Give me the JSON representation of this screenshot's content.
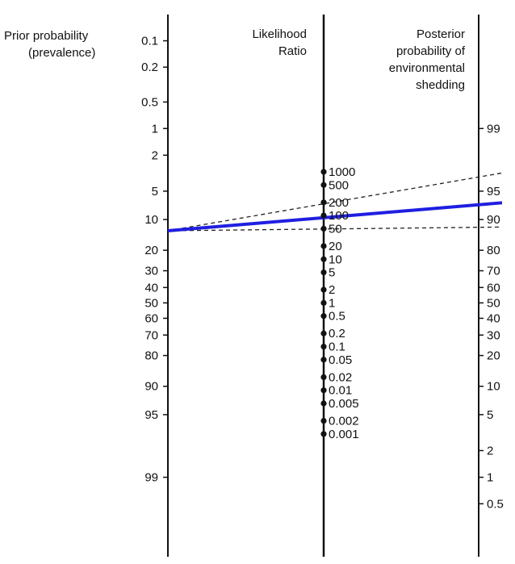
{
  "labels": {
    "prior_title_1": "Prior probability",
    "prior_title_2": "(prevalence)",
    "lr_title_1": "Likelihood",
    "lr_title_2": "Ratio",
    "post_title_1": "Posterior",
    "post_title_2": "probability of",
    "post_title_3": "environmental",
    "post_title_4": "shedding"
  },
  "chart_data": {
    "type": "nomogram",
    "prior_ticks": [
      "0.1",
      "0.2",
      "0.5",
      "1",
      "2",
      "5",
      "10",
      "20",
      "30",
      "40",
      "50",
      "60",
      "70",
      "80",
      "90",
      "95",
      "99"
    ],
    "lr_ticks": [
      "1000",
      "500",
      "200",
      "100",
      "50",
      "20",
      "10",
      "5",
      "2",
      "1",
      "0.5",
      "0.2",
      "0.1",
      "0.05",
      "0.02",
      "0.01",
      "0.005",
      "0.002",
      "0.001"
    ],
    "posterior_ticks": [
      "99",
      "95",
      "90",
      "80",
      "70",
      "60",
      "50",
      "40",
      "30",
      "20",
      "10",
      "5",
      "2",
      "1",
      "0.5"
    ],
    "lines": [
      {
        "style": "solid",
        "color": "#1f1fe0",
        "prior": 13,
        "lr": 100,
        "posterior": 93
      },
      {
        "style": "dashed",
        "color": "#222222",
        "prior": 13,
        "lr": 200,
        "posterior": 96.5
      },
      {
        "style": "dashed",
        "color": "#222222",
        "prior": 13,
        "lr": 50,
        "posterior": 88
      }
    ]
  }
}
